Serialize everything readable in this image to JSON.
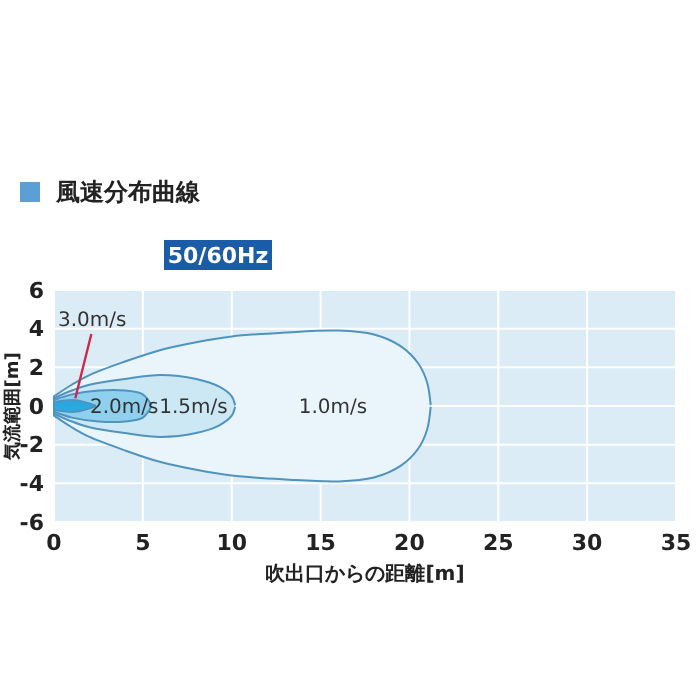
{
  "chart_data": {
    "type": "area",
    "title": "風速分布曲線",
    "xlabel": "吹出口からの距離[m]",
    "ylabel": "気流範囲[m]",
    "annotations": [
      "50/60Hz"
    ],
    "xlim": [
      0,
      35
    ],
    "ylim": [
      -6,
      6
    ],
    "xticks": [
      0,
      5,
      10,
      15,
      20,
      25,
      30,
      35
    ],
    "yticks": [
      -6,
      -4,
      -2,
      0,
      2,
      4,
      6
    ],
    "grid": true,
    "series": [
      {
        "name": "1.0m/s",
        "color": "#eaf5fb",
        "x": [
          0,
          1,
          2,
          4,
          6,
          8,
          10,
          13,
          16,
          18,
          19.5,
          20.5,
          21,
          21.2
        ],
        "values": [
          0.5,
          1.1,
          1.6,
          2.3,
          2.9,
          3.3,
          3.6,
          3.8,
          3.9,
          3.7,
          3.1,
          2.2,
          1.2,
          0
        ]
      },
      {
        "color": "#eaf5fb",
        "x": [
          0,
          1,
          2,
          4,
          6,
          8,
          10,
          13,
          16,
          18,
          19.5,
          20.5,
          21,
          21.2
        ],
        "values": [
          -0.5,
          -1.1,
          -1.6,
          -2.3,
          -2.9,
          -3.3,
          -3.6,
          -3.8,
          -3.9,
          -3.7,
          -3.1,
          -2.2,
          -1.2,
          0
        ]
      },
      {
        "name": "1.5m/s",
        "color": "#cde8f5",
        "x": [
          0,
          1,
          2,
          4,
          6,
          8,
          9.3,
          10,
          10.2
        ],
        "values": [
          0.4,
          0.8,
          1.1,
          1.4,
          1.6,
          1.4,
          1,
          0.5,
          0
        ]
      },
      {
        "color": "#cde8f5",
        "x": [
          0,
          1,
          2,
          4,
          6,
          8,
          9.3,
          10,
          10.2
        ],
        "values": [
          -0.4,
          -0.8,
          -1.1,
          -1.4,
          -1.6,
          -1.4,
          -1,
          -0.5,
          0
        ]
      },
      {
        "name": "2.0m/s",
        "color": "#8fd0ef",
        "x": [
          0,
          1,
          2.5,
          4,
          5,
          5.5
        ],
        "values": [
          0.3,
          0.6,
          0.8,
          0.8,
          0.6,
          0
        ]
      },
      {
        "color": "#8fd0ef",
        "x": [
          0,
          1,
          2.5,
          4,
          5,
          5.5
        ],
        "values": [
          -0.3,
          -0.6,
          -0.8,
          -0.8,
          -0.6,
          0
        ]
      },
      {
        "name": "3.0m/s",
        "color": "#29a8e0",
        "x": [
          0,
          1.2,
          2.4
        ],
        "values": [
          0.2,
          0.3,
          0
        ]
      },
      {
        "color": "#2ba9e1",
        "x": [
          0,
          1.2,
          2.4
        ],
        "values": [
          -0.2,
          -0.3,
          0
        ]
      }
    ]
  }
}
